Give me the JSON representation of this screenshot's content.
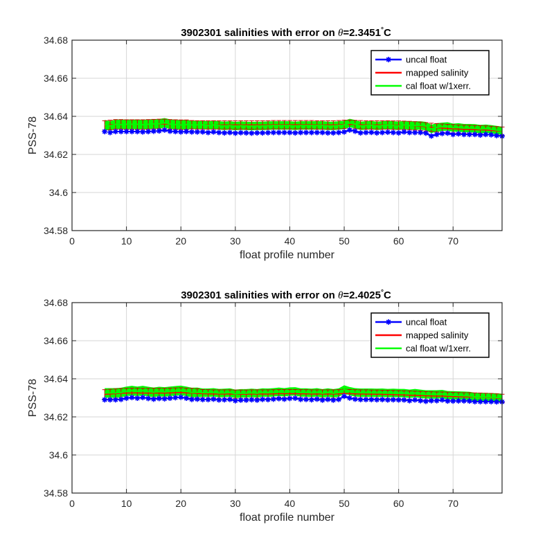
{
  "chart_data": [
    {
      "type": "line",
      "title_prefix": "3902301 salinities with error on ",
      "title_theta": "θ",
      "title_value": "=2.3451",
      "title_unit": "C",
      "xlabel": "float profile number",
      "ylabel": "PSS-78",
      "xlim": [
        0,
        79
      ],
      "ylim": [
        34.58,
        34.68
      ],
      "xticks": [
        "0",
        "10",
        "20",
        "30",
        "40",
        "50",
        "60",
        "70"
      ],
      "yticks": [
        "34.58",
        "34.6",
        "34.62",
        "34.64",
        "34.66",
        "34.68"
      ],
      "grid": true,
      "legend_position": "top-right",
      "legend": [
        "uncal float",
        "mapped salinity",
        "cal float w/1xerr."
      ],
      "colors": {
        "uncal": "#0000ff",
        "mapped": "#ff0000",
        "cal": "#00ff00",
        "error": "#cc0000"
      },
      "x_start": 6,
      "x_end": 79,
      "gap_after": 6,
      "series": [
        {
          "name": "uncal float",
          "values": [
            34.632,
            34.6315,
            34.632,
            34.632,
            34.632,
            34.632,
            34.632,
            34.6318,
            34.632,
            34.6322,
            34.6323,
            34.6328,
            34.6322,
            34.632,
            34.6318,
            34.632,
            34.6318,
            34.6318,
            34.6318,
            34.6315,
            34.6318,
            34.6315,
            34.6313,
            34.6315,
            34.6312,
            34.6314,
            34.6313,
            34.6312,
            34.6313,
            34.6313,
            34.6314,
            34.6315,
            34.6315,
            34.6315,
            34.6315,
            34.6313,
            34.6315,
            34.6315,
            34.6315,
            34.6315,
            34.6315,
            34.6313,
            34.6313,
            34.6315,
            34.6318,
            34.6328,
            34.6322,
            34.6313,
            34.6315,
            34.6316,
            34.6313,
            34.6315,
            34.6317,
            34.6315,
            34.6313,
            34.6318,
            34.6315,
            34.6315,
            34.6315,
            34.6312,
            34.6297,
            34.6305,
            34.631,
            34.6312,
            34.6305,
            34.6308,
            34.6305,
            34.6305,
            34.6305,
            34.6302,
            34.6305,
            34.6303,
            34.6299,
            34.6296
          ]
        },
        {
          "name": "mapped salinity",
          "values": [
            34.6352,
            34.6355,
            34.6358,
            34.6358,
            34.6357,
            34.6357,
            34.6357,
            34.6357,
            34.6358,
            34.6359,
            34.636,
            34.636,
            34.6358,
            34.6357,
            34.6356,
            34.6356,
            34.6356,
            34.6355,
            34.6355,
            34.6355,
            34.6355,
            34.6355,
            34.6355,
            34.6355,
            34.6355,
            34.6355,
            34.6355,
            34.6355,
            34.6355,
            34.6355,
            34.6355,
            34.6356,
            34.6356,
            34.6356,
            34.6356,
            34.6356,
            34.6356,
            34.6356,
            34.6356,
            34.6355,
            34.6355,
            34.6355,
            34.6355,
            34.6356,
            34.6358,
            34.6358,
            34.6357,
            34.6356,
            34.6355,
            34.6355,
            34.6355,
            34.6355,
            34.6355,
            34.6354,
            34.6354,
            34.6353,
            34.6352,
            34.635,
            34.6348,
            34.6345,
            34.6342,
            34.634,
            34.6338,
            34.6336,
            34.6335,
            34.6333,
            34.6332,
            34.6331,
            34.633,
            34.6329,
            34.6328,
            34.6326,
            34.6324,
            34.6322
          ]
        },
        {
          "name": "cal float w/1xerr.",
          "values": [
            34.6356,
            34.635,
            34.6358,
            34.6357,
            34.6358,
            34.6358,
            34.6358,
            34.6356,
            34.6358,
            34.636,
            34.6361,
            34.6366,
            34.6359,
            34.6357,
            34.6355,
            34.6357,
            34.6355,
            34.6355,
            34.6355,
            34.6352,
            34.6355,
            34.6352,
            34.635,
            34.6352,
            34.6349,
            34.6351,
            34.635,
            34.6349,
            34.635,
            34.635,
            34.6351,
            34.6352,
            34.6352,
            34.6352,
            34.6352,
            34.635,
            34.6352,
            34.6352,
            34.6352,
            34.6352,
            34.6352,
            34.635,
            34.635,
            34.6352,
            34.6355,
            34.6365,
            34.6359,
            34.635,
            34.6352,
            34.6353,
            34.635,
            34.6352,
            34.6354,
            34.6352,
            34.635,
            34.6355,
            34.6352,
            34.6352,
            34.6352,
            34.6349,
            34.6334,
            34.6342,
            34.6345,
            34.6347,
            34.634,
            34.6342,
            34.6338,
            34.6338,
            34.6337,
            34.6333,
            34.6335,
            34.6332,
            34.6328,
            34.6324
          ]
        }
      ],
      "error_half_width": [
        0.0025,
        0.0025,
        0.0025,
        0.0025,
        0.0025,
        0.0025,
        0.0025,
        0.0025,
        0.0025,
        0.0025,
        0.0025,
        0.0025,
        0.0025,
        0.0025,
        0.0025,
        0.0025,
        0.0022,
        0.0022,
        0.0022,
        0.0022,
        0.0022,
        0.0022,
        0.0022,
        0.0022,
        0.0022,
        0.0022,
        0.0022,
        0.0022,
        0.0022,
        0.0022,
        0.0022,
        0.0022,
        0.0022,
        0.0022,
        0.0022,
        0.0022,
        0.0022,
        0.0022,
        0.0022,
        0.0022,
        0.0022,
        0.0022,
        0.0022,
        0.0022,
        0.0022,
        0.0022,
        0.0022,
        0.0022,
        0.0022,
        0.0022,
        0.0022,
        0.0022,
        0.0022,
        0.0022,
        0.0022,
        0.0022,
        0.0022,
        0.0022,
        0.0022,
        0.0022,
        0.0022,
        0.0022,
        0.0022,
        0.0022,
        0.0022,
        0.0022,
        0.0022,
        0.0022,
        0.0022,
        0.0022,
        0.0022,
        0.0022,
        0.0022,
        0.0022
      ]
    },
    {
      "type": "line",
      "title_prefix": "3902301 salinities with error on ",
      "title_theta": "θ",
      "title_value": "=2.4025",
      "title_unit": "C",
      "xlabel": "float profile number",
      "ylabel": "PSS-78",
      "xlim": [
        0,
        79
      ],
      "ylim": [
        34.58,
        34.68
      ],
      "xticks": [
        "0",
        "10",
        "20",
        "30",
        "40",
        "50",
        "60",
        "70"
      ],
      "yticks": [
        "34.58",
        "34.6",
        "34.62",
        "34.64",
        "34.66",
        "34.68"
      ],
      "grid": true,
      "legend_position": "top-right",
      "legend": [
        "uncal float",
        "mapped salinity",
        "cal float w/1xerr."
      ],
      "colors": {
        "uncal": "#0000ff",
        "mapped": "#ff0000",
        "cal": "#00ff00",
        "error": "#cc0000"
      },
      "x_start": 6,
      "x_end": 79,
      "gap_after": null,
      "series": [
        {
          "name": "uncal float",
          "values": [
            34.629,
            34.629,
            34.629,
            34.6292,
            34.6298,
            34.6302,
            34.6298,
            34.6302,
            34.6297,
            34.6293,
            34.6297,
            34.6295,
            34.6298,
            34.6301,
            34.6303,
            34.6298,
            34.6292,
            34.6293,
            34.6291,
            34.6291,
            34.6293,
            34.6289,
            34.629,
            34.6292,
            34.6285,
            34.6288,
            34.6288,
            34.629,
            34.6288,
            34.6292,
            34.6291,
            34.6293,
            34.6296,
            34.6293,
            34.6297,
            34.6298,
            34.6292,
            34.6292,
            34.629,
            34.6293,
            34.6288,
            34.6292,
            34.6288,
            34.6292,
            34.6308,
            34.6299,
            34.6293,
            34.6291,
            34.6291,
            34.6291,
            34.629,
            34.6291,
            34.6289,
            34.629,
            34.6289,
            34.6289,
            34.6285,
            34.6289,
            34.6285,
            34.6282,
            34.6285,
            34.6285,
            34.6289,
            34.6283,
            34.6283,
            34.6284,
            34.6284,
            34.6283,
            34.628,
            34.628,
            34.628,
            34.628,
            34.6279,
            34.6279
          ]
        },
        {
          "name": "mapped salinity",
          "values": [
            34.6318,
            34.632,
            34.6322,
            34.6324,
            34.6325,
            34.6326,
            34.6326,
            34.6325,
            34.6325,
            34.6325,
            34.6325,
            34.6325,
            34.6326,
            34.6327,
            34.6328,
            34.6326,
            34.6325,
            34.6323,
            34.6322,
            34.6321,
            34.632,
            34.632,
            34.632,
            34.632,
            34.6319,
            34.6319,
            34.6319,
            34.632,
            34.632,
            34.632,
            34.632,
            34.6321,
            34.6322,
            34.6322,
            34.6322,
            34.6322,
            34.6321,
            34.6321,
            34.632,
            34.632,
            34.632,
            34.632,
            34.632,
            34.6321,
            34.6323,
            34.6322,
            34.6321,
            34.632,
            34.632,
            34.6319,
            34.6319,
            34.6318,
            34.6318,
            34.6317,
            34.6316,
            34.6315,
            34.6314,
            34.6313,
            34.6312,
            34.6311,
            34.631,
            34.6309,
            34.6309,
            34.6308,
            34.6307,
            34.6306,
            34.6305,
            34.6305,
            34.6304,
            34.6303,
            34.6302,
            34.6301,
            34.6299,
            34.6297
          ]
        },
        {
          "name": "cal float w/1xerr.",
          "values": [
            34.6326,
            34.6326,
            34.6326,
            34.6328,
            34.6334,
            34.6338,
            34.6334,
            34.6338,
            34.6333,
            34.6329,
            34.6333,
            34.6331,
            34.6334,
            34.6337,
            34.6339,
            34.6334,
            34.6328,
            34.6329,
            34.6327,
            34.6327,
            34.6329,
            34.6325,
            34.6326,
            34.6328,
            34.6321,
            34.6324,
            34.6324,
            34.6326,
            34.6324,
            34.6328,
            34.6327,
            34.6329,
            34.6332,
            34.6329,
            34.6333,
            34.6334,
            34.6328,
            34.6328,
            34.6326,
            34.6329,
            34.6324,
            34.6328,
            34.6324,
            34.6328,
            34.6344,
            34.6335,
            34.6329,
            34.6327,
            34.6327,
            34.6327,
            34.6326,
            34.6327,
            34.6325,
            34.6326,
            34.6325,
            34.6325,
            34.6321,
            34.6325,
            34.6321,
            34.6318,
            34.6318,
            34.6318,
            34.632,
            34.6314,
            34.6313,
            34.6312,
            34.6311,
            34.631,
            34.6305,
            34.6305,
            34.6304,
            34.6303,
            34.6302,
            34.63
          ]
        }
      ],
      "error_half_width": [
        0.0025,
        0.0025,
        0.0025,
        0.0025,
        0.0025,
        0.0025,
        0.0025,
        0.0025,
        0.0025,
        0.0025,
        0.0025,
        0.0025,
        0.0025,
        0.0025,
        0.0025,
        0.0025,
        0.0025,
        0.0025,
        0.0022,
        0.0022,
        0.0022,
        0.0022,
        0.0022,
        0.0022,
        0.0022,
        0.0022,
        0.0022,
        0.0022,
        0.0022,
        0.0022,
        0.0022,
        0.0022,
        0.0022,
        0.0022,
        0.0022,
        0.0022,
        0.0022,
        0.0022,
        0.0022,
        0.0022,
        0.0022,
        0.0022,
        0.0022,
        0.0022,
        0.0022,
        0.0022,
        0.0022,
        0.0022,
        0.0022,
        0.0022,
        0.0022,
        0.0022,
        0.0022,
        0.0022,
        0.0022,
        0.0022,
        0.0022,
        0.0022,
        0.0022,
        0.0022,
        0.0022,
        0.0022,
        0.0022,
        0.0022,
        0.0022,
        0.0022,
        0.0022,
        0.0022,
        0.0022,
        0.0022,
        0.0022,
        0.0022,
        0.0022,
        0.0022
      ]
    }
  ]
}
